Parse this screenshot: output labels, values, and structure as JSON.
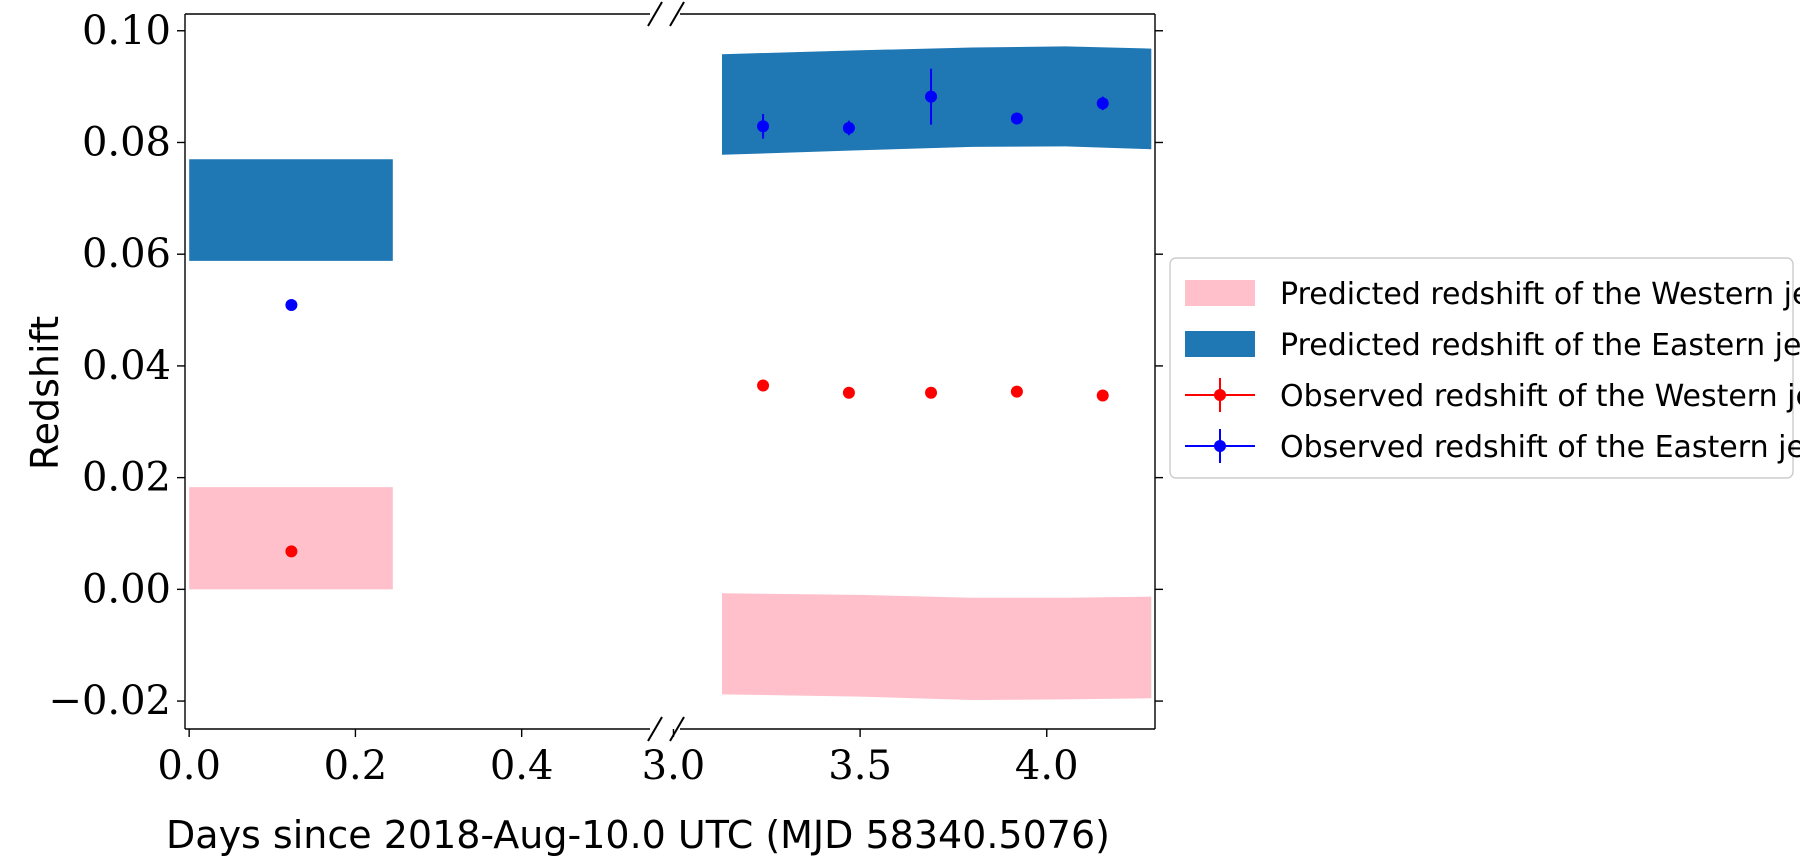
{
  "chart_data": {
    "type": "scatter",
    "title": "",
    "xlabel": "Days since 2018-Aug-10.0 UTC (MJD 58340.5076)",
    "ylabel": "Redshift",
    "ylim": [
      -0.025,
      0.103
    ],
    "x_segments": [
      {
        "xlim": [
          -0.005,
          0.57
        ],
        "ticks": [
          0.0,
          0.2,
          0.4
        ],
        "tick_labels": [
          "0.0",
          "0.2",
          "0.4"
        ]
      },
      {
        "xlim": [
          2.98,
          4.29
        ],
        "ticks": [
          3.0,
          3.5,
          4.0
        ],
        "tick_labels": [
          "3.0",
          "3.5",
          "4.0"
        ]
      }
    ],
    "yticks": [
      -0.02,
      0.0,
      0.02,
      0.04,
      0.06,
      0.08,
      0.1
    ],
    "ytick_labels": [
      "−0.02",
      "0.00",
      "0.02",
      "0.04",
      "0.06",
      "0.08",
      "0.10"
    ],
    "axis_break": true,
    "grid": false,
    "legend_position": "right, outside plot",
    "bands": [
      {
        "name": "Predicted redshift of the Western jet",
        "color": "#ffc0cb",
        "segments": [
          {
            "x": [
              0.0,
              0.245
            ],
            "lower": [
              0.0,
              0.0
            ],
            "upper": [
              0.0183,
              0.0183
            ]
          },
          {
            "x": [
              3.13,
              3.5,
              3.8,
              4.05,
              4.28
            ],
            "lower": [
              -0.0188,
              -0.0192,
              -0.0198,
              -0.0197,
              -0.0195
            ],
            "upper": [
              -0.0007,
              -0.001,
              -0.0015,
              -0.0015,
              -0.0013
            ]
          }
        ]
      },
      {
        "name": "Predicted redshift of the Eastern jet",
        "color": "#1f77b4",
        "segments": [
          {
            "x": [
              0.0,
              0.245
            ],
            "lower": [
              0.0588,
              0.0588
            ],
            "upper": [
              0.077,
              0.077
            ]
          },
          {
            "x": [
              3.13,
              3.5,
              3.8,
              4.05,
              4.28
            ],
            "lower": [
              0.0778,
              0.0786,
              0.0792,
              0.0793,
              0.0788
            ],
            "upper": [
              0.0958,
              0.0965,
              0.097,
              0.0972,
              0.0968
            ]
          }
        ]
      }
    ],
    "series": [
      {
        "name": "Observed redshift of the Western jet",
        "color": "#ff0000",
        "points": [
          {
            "x": 0.123,
            "y": 0.0068,
            "err": 0.0
          },
          {
            "x": 3.24,
            "y": 0.0365,
            "err": 0.0
          },
          {
            "x": 3.47,
            "y": 0.0352,
            "err": 0.0
          },
          {
            "x": 3.69,
            "y": 0.0352,
            "err": 0.0
          },
          {
            "x": 3.92,
            "y": 0.0354,
            "err": 0.0
          },
          {
            "x": 4.15,
            "y": 0.0347,
            "err": 0.0
          }
        ]
      },
      {
        "name": "Observed redshift of the Eastern jet",
        "color": "#0000ff",
        "points": [
          {
            "x": 0.123,
            "y": 0.0509,
            "err": 0.0
          },
          {
            "x": 3.24,
            "y": 0.0829,
            "err": 0.0022
          },
          {
            "x": 3.47,
            "y": 0.0826,
            "err": 0.0013
          },
          {
            "x": 3.69,
            "y": 0.0882,
            "err": 0.005
          },
          {
            "x": 3.92,
            "y": 0.0843,
            "err": 0.0
          },
          {
            "x": 4.15,
            "y": 0.087,
            "err": 0.0012
          }
        ]
      }
    ],
    "legend": [
      {
        "label": "Predicted redshift of the Western jet",
        "kind": "band",
        "color": "#ffc0cb"
      },
      {
        "label": "Predicted redshift of the Eastern jet",
        "kind": "band",
        "color": "#1f77b4"
      },
      {
        "label": "Observed redshift of the Western jet",
        "kind": "errorbar",
        "color": "#ff0000"
      },
      {
        "label": "Observed redshift of the Eastern jet",
        "kind": "errorbar",
        "color": "#0000ff"
      }
    ]
  }
}
